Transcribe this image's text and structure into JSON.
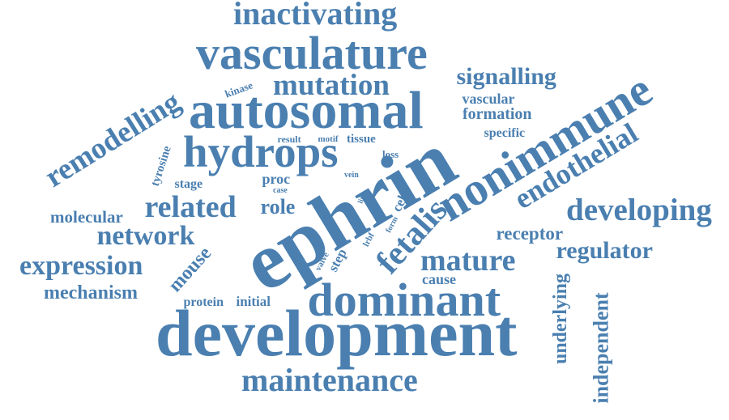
{
  "colors": {
    "word": "#4a7fb0",
    "background": "#ffffff"
  },
  "words": [
    {
      "text": "ephrin"
    },
    {
      "text": "development"
    },
    {
      "text": "autosomal"
    },
    {
      "text": "nonimmune"
    },
    {
      "text": "vasculature"
    },
    {
      "text": "dominant"
    },
    {
      "text": "hydrops"
    },
    {
      "text": "maintenance"
    },
    {
      "text": "inactivating"
    },
    {
      "text": "mutation"
    },
    {
      "text": "remodelling"
    },
    {
      "text": "fetalis"
    },
    {
      "text": "developing"
    },
    {
      "text": "endothelial"
    },
    {
      "text": "related"
    },
    {
      "text": "expression"
    },
    {
      "text": "mature"
    },
    {
      "text": "network"
    },
    {
      "text": "regulator"
    },
    {
      "text": "signalling"
    },
    {
      "text": "independent"
    },
    {
      "text": "underlying"
    },
    {
      "text": "receptor"
    },
    {
      "text": "mechanism"
    },
    {
      "text": "molecular"
    },
    {
      "text": "role"
    },
    {
      "text": "mouse"
    },
    {
      "text": "formation"
    },
    {
      "text": "vascular"
    },
    {
      "text": "cause"
    },
    {
      "text": "initial"
    },
    {
      "text": "protein"
    },
    {
      "text": "specific"
    },
    {
      "text": "proc"
    },
    {
      "text": "stage"
    },
    {
      "text": "step"
    },
    {
      "text": "tyrosine"
    },
    {
      "text": "cell"
    },
    {
      "text": "tissue"
    },
    {
      "text": "kinase"
    },
    {
      "text": "result"
    },
    {
      "text": "motif"
    },
    {
      "text": "loss"
    },
    {
      "text": "case"
    },
    {
      "text": "vein"
    },
    {
      "text": "line"
    },
    {
      "text": "valve"
    },
    {
      "text": "form"
    },
    {
      "text": "lrbf"
    }
  ]
}
